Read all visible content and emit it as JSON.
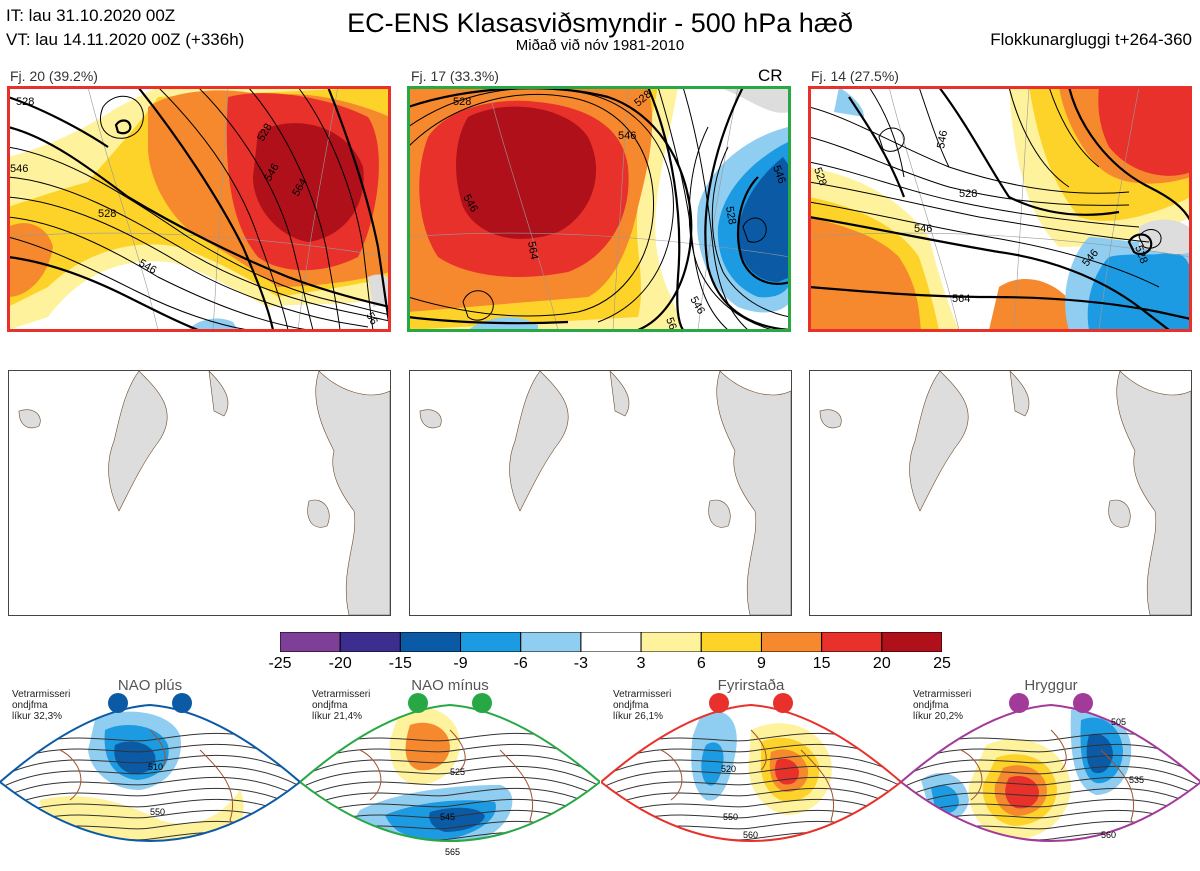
{
  "header": {
    "it_line": "IT: lau 31.10.2020 00Z",
    "vt_line": "VT: lau 14.11.2020 00Z  (+336h)",
    "title": "EC-ENS Klasasviðsmyndir - 500 hPa hæð",
    "subtitle": "Miðað við nóv 1981-2010",
    "window": "Flokkunargluggi t+264-360"
  },
  "clusters": [
    {
      "label": "Fj. 20 (39.2%)",
      "border_color": "#e8312a",
      "badge": "",
      "contour_labels": [
        "528",
        "546",
        "564",
        "528",
        "546",
        "546",
        "528",
        "56"
      ]
    },
    {
      "label": "Fj. 17 (33.3%)",
      "border_color": "#27a844",
      "badge": "CR",
      "contour_labels": [
        "528",
        "528",
        "546",
        "546",
        "564",
        "546",
        "528",
        "564",
        "546"
      ]
    },
    {
      "label": "Fj. 14 (27.5%)",
      "border_color": "#e8312a",
      "badge": "",
      "contour_labels": [
        "528",
        "546",
        "528",
        "546",
        "564",
        "546",
        "528"
      ]
    }
  ],
  "colorbar": {
    "ticks": [
      "-25",
      "-20",
      "-15",
      "-9",
      "-6",
      "-3",
      "3",
      "6",
      "9",
      "15",
      "20",
      "25"
    ],
    "colors": [
      "#7e3f98",
      "#3b2e8f",
      "#0b5aa6",
      "#1d9be2",
      "#8fcdf1",
      "#ffffff",
      "#fff29c",
      "#fdd32a",
      "#f6892e",
      "#e8312a",
      "#b0101a"
    ]
  },
  "regimes": [
    {
      "name": "NAO plús",
      "info": [
        "Vetrarmisseri",
        "ondjfma",
        "líkur 32,3%"
      ],
      "color": "#0b5aa6",
      "contour_labels": [
        "510",
        "550"
      ]
    },
    {
      "name": "NAO mínus",
      "info": [
        "Vetrarmisseri",
        "ondjfma",
        "líkur 21,4%"
      ],
      "color": "#27a844",
      "contour_labels": [
        "525",
        "545",
        "565"
      ]
    },
    {
      "name": "Fyrirstaða",
      "info": [
        "Vetrarmisseri",
        "ondjfma",
        "líkur 26,1%"
      ],
      "color": "#e8312a",
      "contour_labels": [
        "520",
        "550",
        "560"
      ]
    },
    {
      "name": "Hryggur",
      "info": [
        "Vetrarmisseri",
        "ondjfma",
        "líkur 20,2%"
      ],
      "color": "#a23a9a",
      "contour_labels": [
        "505",
        "535",
        "560"
      ]
    }
  ]
}
